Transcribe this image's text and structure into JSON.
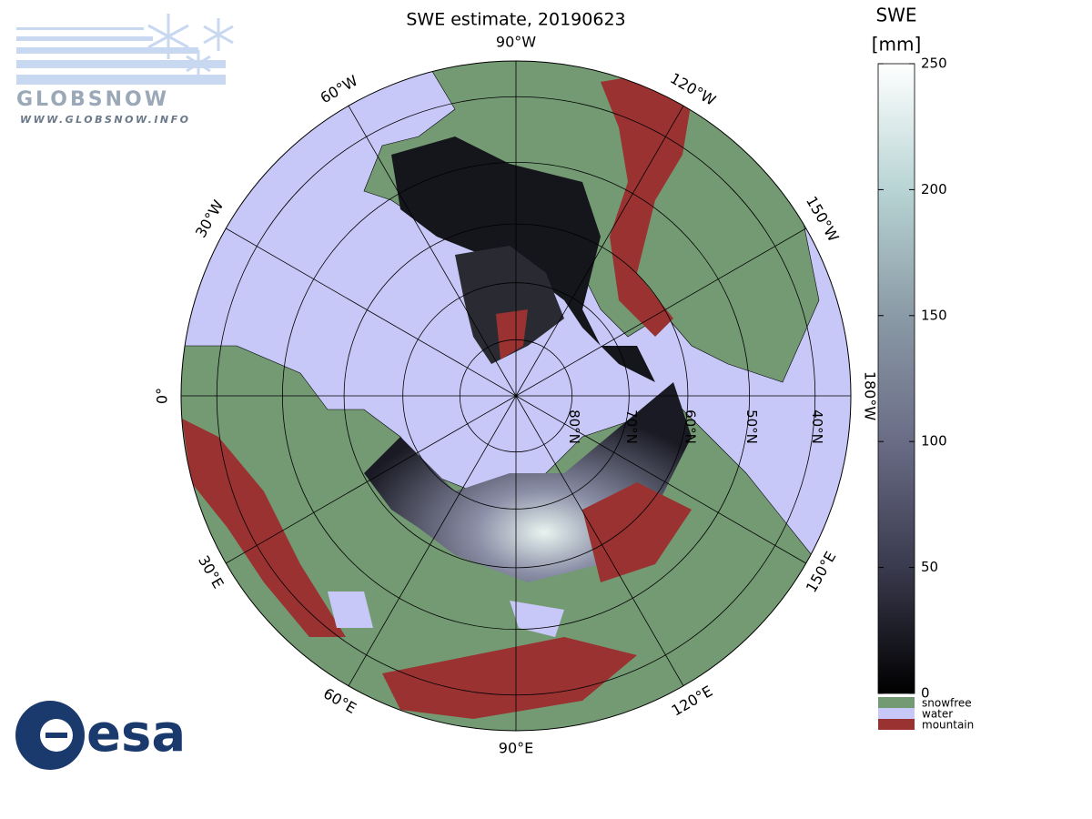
{
  "title": "SWE estimate, 20190623",
  "logo": {
    "name": "GLOBSNOW",
    "url": "WWW.GLOBSNOW.INFO",
    "agency": "esa"
  },
  "map": {
    "longitudes": [
      {
        "value": 0,
        "label": "0°"
      },
      {
        "value": 30,
        "label": "30°E"
      },
      {
        "value": 60,
        "label": "60°E"
      },
      {
        "value": 90,
        "label": "90°E"
      },
      {
        "value": 120,
        "label": "120°E"
      },
      {
        "value": 150,
        "label": "150°E"
      },
      {
        "value": 180,
        "label": "180°W"
      },
      {
        "value": -150,
        "label": "150°W"
      },
      {
        "value": -120,
        "label": "120°W"
      },
      {
        "value": -90,
        "label": "90°W"
      },
      {
        "value": -60,
        "label": "60°W"
      },
      {
        "value": -30,
        "label": "30°W"
      }
    ],
    "latitudes": [
      {
        "value": 80,
        "label": "80°N"
      },
      {
        "value": 70,
        "label": "70°N"
      },
      {
        "value": 60,
        "label": "60°N"
      },
      {
        "value": 50,
        "label": "50°N"
      },
      {
        "value": 40,
        "label": "40°N"
      }
    ]
  },
  "colorbar": {
    "title": "SWE",
    "unit": "[mm]",
    "lim": [
      0,
      250
    ],
    "ticks": [
      0,
      50,
      100,
      150,
      200,
      250
    ],
    "colors": [
      "#000000",
      "#3a3a4e",
      "#6a6c86",
      "#8a9aa6",
      "#b8d4d4",
      "#ffffff"
    ],
    "classes": [
      {
        "name": "snowfree",
        "color": "#739a73"
      },
      {
        "name": "water",
        "color": "#c8c8f8"
      },
      {
        "name": "mountain",
        "color": "#9a3232"
      }
    ]
  }
}
